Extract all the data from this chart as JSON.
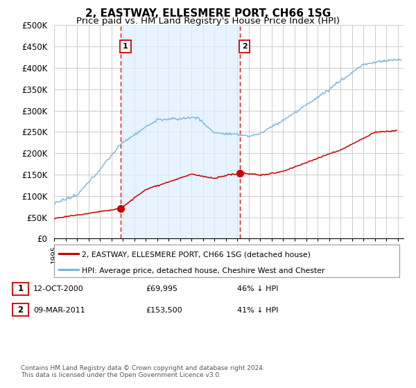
{
  "title": "2, EASTWAY, ELLESMERE PORT, CH66 1SG",
  "subtitle": "Price paid vs. HM Land Registry's House Price Index (HPI)",
  "ylim": [
    0,
    500000
  ],
  "yticks": [
    0,
    50000,
    100000,
    150000,
    200000,
    250000,
    300000,
    350000,
    400000,
    450000,
    500000
  ],
  "xlim_start": 1995.0,
  "xlim_end": 2025.5,
  "hpi_color": "#7ab4d8",
  "hpi_fill_color": "#ddeeff",
  "sale_color": "#cc0000",
  "vline_color": "#cc0000",
  "grid_color": "#cccccc",
  "background_color": "#ffffff",
  "sale1_x": 2000.79,
  "sale1_y": 69995,
  "sale2_x": 2011.19,
  "sale2_y": 153500,
  "legend_line1": "2, EASTWAY, ELLESMERE PORT, CH66 1SG (detached house)",
  "legend_line2": "HPI: Average price, detached house, Cheshire West and Chester",
  "sale1_date": "12-OCT-2000",
  "sale1_price": "£69,995",
  "sale1_pct": "46% ↓ HPI",
  "sale2_date": "09-MAR-2011",
  "sale2_price": "£153,500",
  "sale2_pct": "41% ↓ HPI",
  "footnote": "Contains HM Land Registry data © Crown copyright and database right 2024.\nThis data is licensed under the Open Government Licence v3.0.",
  "title_fontsize": 11,
  "subtitle_fontsize": 9.5
}
